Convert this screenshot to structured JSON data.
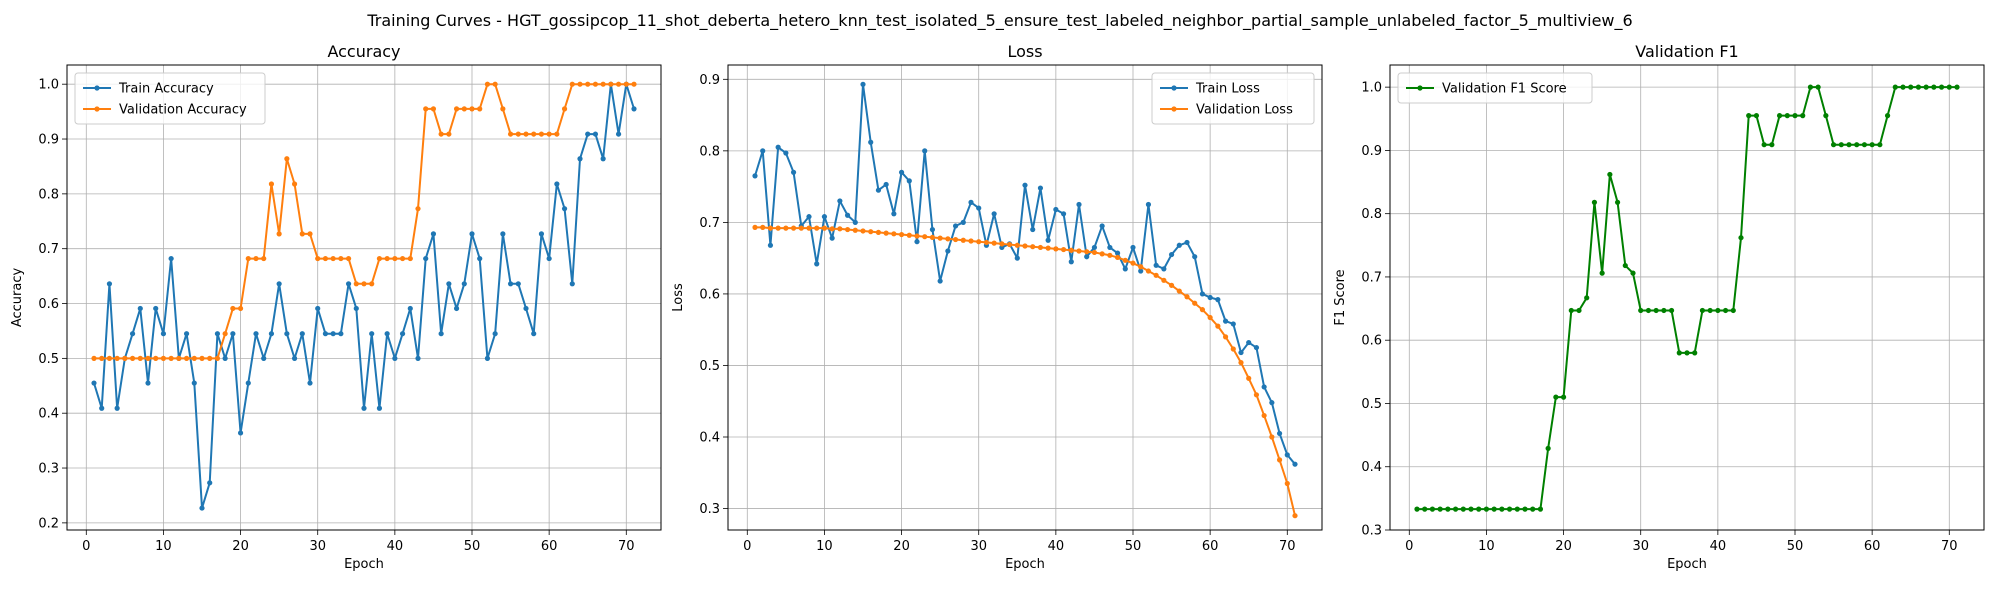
{
  "figure": {
    "title": "Training Curves - HGT_gossipcop_11_shot_deberta_hetero_knn_test_isolated_5_ensure_test_labeled_neighbor_partial_sample_unlabeled_factor_5_multiview_6"
  },
  "colors": {
    "train": "#1f77b4",
    "validation": "#ff7f0e",
    "f1": "#008000"
  },
  "chart_data": [
    {
      "type": "line",
      "title": "Accuracy",
      "xlabel": "Epoch",
      "ylabel": "Accuracy",
      "xlim": [
        -2.5,
        74.5
      ],
      "ylim": [
        0.187,
        1.035
      ],
      "xticks": [
        0,
        10,
        20,
        30,
        40,
        50,
        60,
        70
      ],
      "yticks": [
        0.2,
        0.3,
        0.4,
        0.5,
        0.6,
        0.7,
        0.8,
        0.9,
        1.0
      ],
      "ytick_labels": [
        "0.2",
        "0.3",
        "0.4",
        "0.5",
        "0.6",
        "0.7",
        "0.8",
        "0.9",
        "1.0"
      ],
      "grid": true,
      "legend_position": "upper-left",
      "series": [
        {
          "name": "Train Accuracy",
          "color_key": "train",
          "x_start": 1,
          "values": [
            0.455,
            0.409,
            0.636,
            0.409,
            0.5,
            0.545,
            0.591,
            0.455,
            0.591,
            0.545,
            0.682,
            0.5,
            0.545,
            0.455,
            0.227,
            0.273,
            0.545,
            0.5,
            0.545,
            0.364,
            0.455,
            0.545,
            0.5,
            0.545,
            0.636,
            0.545,
            0.5,
            0.545,
            0.455,
            0.591,
            0.545,
            0.545,
            0.545,
            0.636,
            0.591,
            0.409,
            0.545,
            0.409,
            0.545,
            0.5,
            0.545,
            0.591,
            0.5,
            0.682,
            0.727,
            0.545,
            0.636,
            0.591,
            0.636,
            0.727,
            0.682,
            0.5,
            0.545,
            0.727,
            0.636,
            0.636,
            0.591,
            0.545,
            0.727,
            0.682,
            0.818,
            0.773,
            0.636,
            0.864,
            0.909,
            0.909,
            0.864,
            1.0,
            0.909,
            1.0,
            0.955
          ]
        },
        {
          "name": "Validation Accuracy",
          "color_key": "validation",
          "x_start": 1,
          "values": [
            0.5,
            0.5,
            0.5,
            0.5,
            0.5,
            0.5,
            0.5,
            0.5,
            0.5,
            0.5,
            0.5,
            0.5,
            0.5,
            0.5,
            0.5,
            0.5,
            0.5,
            0.545,
            0.591,
            0.591,
            0.682,
            0.682,
            0.682,
            0.818,
            0.727,
            0.864,
            0.818,
            0.727,
            0.727,
            0.682,
            0.682,
            0.682,
            0.682,
            0.682,
            0.636,
            0.636,
            0.636,
            0.682,
            0.682,
            0.682,
            0.682,
            0.682,
            0.773,
            0.955,
            0.955,
            0.909,
            0.909,
            0.955,
            0.955,
            0.955,
            0.955,
            1.0,
            1.0,
            0.955,
            0.909,
            0.909,
            0.909,
            0.909,
            0.909,
            0.909,
            0.909,
            0.955,
            1.0,
            1.0,
            1.0,
            1.0,
            1.0,
            1.0,
            1.0,
            1.0,
            1.0
          ]
        }
      ]
    },
    {
      "type": "line",
      "title": "Loss",
      "xlabel": "Epoch",
      "ylabel": "Loss",
      "xlim": [
        -2.5,
        74.5
      ],
      "ylim": [
        0.27,
        0.92
      ],
      "xticks": [
        0,
        10,
        20,
        30,
        40,
        50,
        60,
        70
      ],
      "yticks": [
        0.3,
        0.4,
        0.5,
        0.6,
        0.7,
        0.8,
        0.9
      ],
      "ytick_labels": [
        "0.3",
        "0.4",
        "0.5",
        "0.6",
        "0.7",
        "0.8",
        "0.9"
      ],
      "grid": true,
      "legend_position": "upper-right",
      "series": [
        {
          "name": "Train Loss",
          "color_key": "train",
          "x_start": 1,
          "values": [
            0.765,
            0.8,
            0.668,
            0.805,
            0.797,
            0.77,
            0.695,
            0.708,
            0.642,
            0.708,
            0.678,
            0.73,
            0.71,
            0.7,
            0.893,
            0.812,
            0.745,
            0.753,
            0.712,
            0.77,
            0.758,
            0.673,
            0.8,
            0.69,
            0.618,
            0.66,
            0.695,
            0.7,
            0.728,
            0.72,
            0.668,
            0.712,
            0.665,
            0.67,
            0.65,
            0.752,
            0.69,
            0.748,
            0.675,
            0.718,
            0.712,
            0.645,
            0.725,
            0.652,
            0.665,
            0.695,
            0.665,
            0.657,
            0.635,
            0.665,
            0.632,
            0.725,
            0.64,
            0.635,
            0.655,
            0.668,
            0.672,
            0.652,
            0.6,
            0.595,
            0.592,
            0.562,
            0.558,
            0.518,
            0.532,
            0.525,
            0.47,
            0.448,
            0.405,
            0.375,
            0.362
          ]
        },
        {
          "name": "Validation Loss",
          "color_key": "validation",
          "x_start": 1,
          "values": [
            0.693,
            0.693,
            0.692,
            0.692,
            0.692,
            0.692,
            0.692,
            0.692,
            0.692,
            0.692,
            0.691,
            0.691,
            0.69,
            0.689,
            0.688,
            0.687,
            0.686,
            0.685,
            0.684,
            0.683,
            0.682,
            0.681,
            0.68,
            0.679,
            0.678,
            0.677,
            0.676,
            0.675,
            0.674,
            0.673,
            0.672,
            0.671,
            0.67,
            0.669,
            0.668,
            0.667,
            0.666,
            0.665,
            0.664,
            0.663,
            0.662,
            0.661,
            0.66,
            0.659,
            0.658,
            0.656,
            0.654,
            0.651,
            0.647,
            0.643,
            0.638,
            0.632,
            0.626,
            0.619,
            0.612,
            0.604,
            0.596,
            0.587,
            0.578,
            0.567,
            0.555,
            0.54,
            0.523,
            0.504,
            0.482,
            0.459,
            0.43,
            0.4,
            0.368,
            0.335,
            0.29
          ]
        }
      ]
    },
    {
      "type": "line",
      "title": "Validation F1",
      "xlabel": "Epoch",
      "ylabel": "F1 Score",
      "xlim": [
        -2.5,
        74.5
      ],
      "ylim": [
        0.3,
        1.035
      ],
      "xticks": [
        0,
        10,
        20,
        30,
        40,
        50,
        60,
        70
      ],
      "yticks": [
        0.3,
        0.4,
        0.5,
        0.6,
        0.7,
        0.8,
        0.9,
        1.0
      ],
      "ytick_labels": [
        "0.3",
        "0.4",
        "0.5",
        "0.6",
        "0.7",
        "0.8",
        "0.9",
        "1.0"
      ],
      "grid": true,
      "legend_position": "upper-left",
      "series": [
        {
          "name": "Validation F1 Score",
          "color_key": "f1",
          "x_start": 1,
          "values": [
            0.333,
            0.333,
            0.333,
            0.333,
            0.333,
            0.333,
            0.333,
            0.333,
            0.333,
            0.333,
            0.333,
            0.333,
            0.333,
            0.333,
            0.333,
            0.333,
            0.333,
            0.429,
            0.51,
            0.51,
            0.647,
            0.647,
            0.667,
            0.818,
            0.706,
            0.862,
            0.818,
            0.718,
            0.706,
            0.647,
            0.647,
            0.647,
            0.647,
            0.647,
            0.58,
            0.58,
            0.58,
            0.647,
            0.647,
            0.647,
            0.647,
            0.647,
            0.762,
            0.955,
            0.955,
            0.909,
            0.909,
            0.955,
            0.955,
            0.955,
            0.955,
            1.0,
            1.0,
            0.955,
            0.909,
            0.909,
            0.909,
            0.909,
            0.909,
            0.909,
            0.909,
            0.955,
            1.0,
            1.0,
            1.0,
            1.0,
            1.0,
            1.0,
            1.0,
            1.0,
            1.0
          ]
        }
      ]
    }
  ]
}
